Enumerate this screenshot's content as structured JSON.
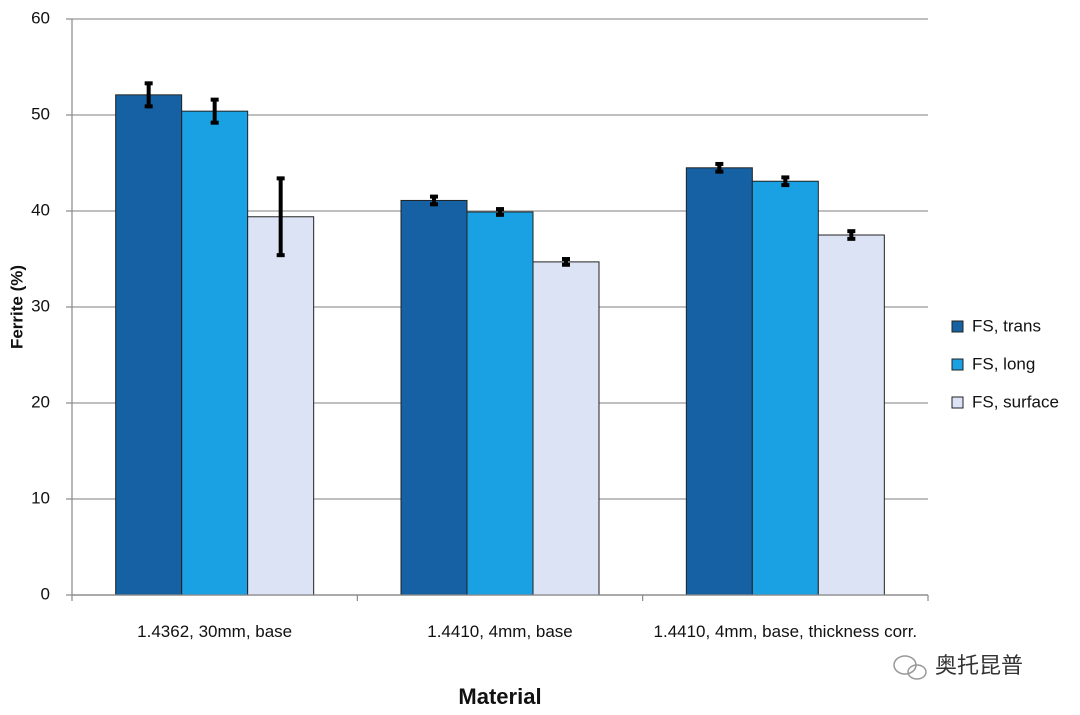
{
  "chart_data": {
    "type": "bar",
    "x_label": "Material",
    "y_label": "Ferrite (%)",
    "categories": [
      "1.4362, 30mm, base",
      "1.4410, 4mm, base",
      "1.4410, 4mm, base, thickness corr."
    ],
    "series": [
      {
        "name": "FS, trans",
        "color": "#1561a3",
        "values": [
          52.1,
          41.1,
          44.5
        ],
        "errors": [
          1.2,
          0.4,
          0.4
        ]
      },
      {
        "name": "FS, long",
        "color": "#1aa1e3",
        "values": [
          50.4,
          39.9,
          43.1
        ],
        "errors": [
          1.2,
          0.3,
          0.4
        ]
      },
      {
        "name": "FS, surface",
        "color": "#dce3f5",
        "values": [
          39.4,
          34.7,
          37.5
        ],
        "errors": [
          4.0,
          0.3,
          0.4
        ]
      }
    ],
    "ylim": [
      0,
      60
    ],
    "yticks": [
      0,
      10,
      20,
      30,
      40,
      50,
      60
    ],
    "grid": true,
    "legend": "right",
    "watermark": "奥托昆普"
  }
}
